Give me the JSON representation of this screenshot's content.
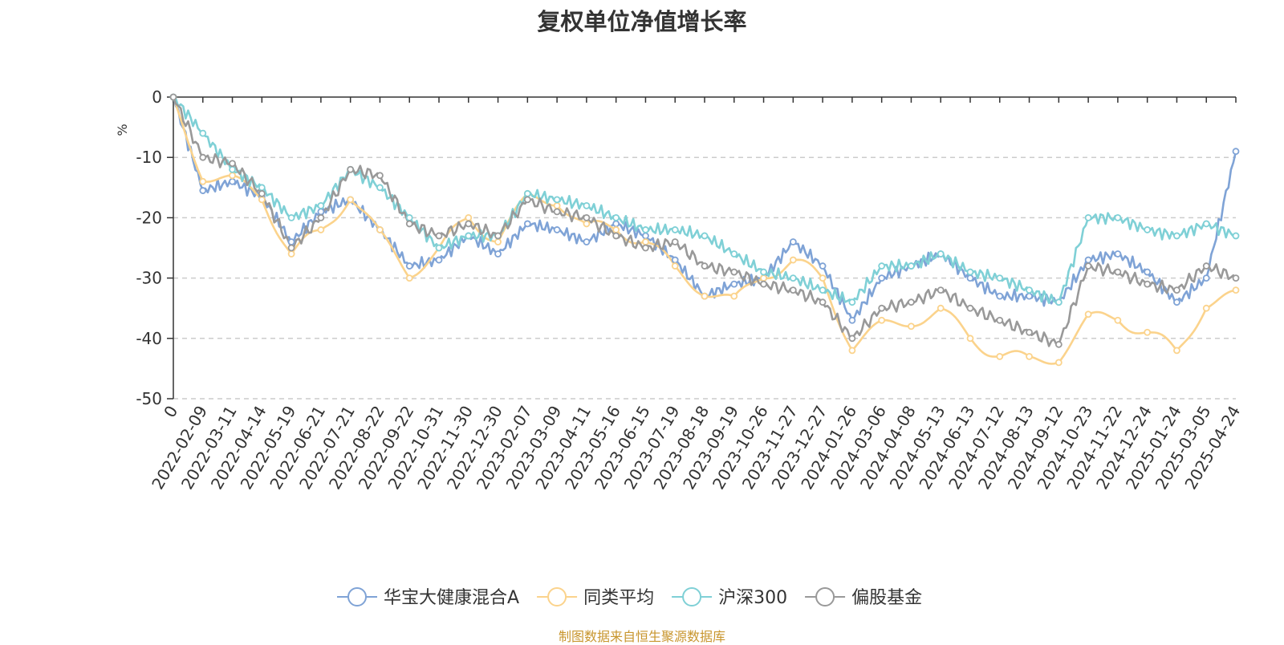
{
  "chart_data": {
    "type": "line",
    "title": "复权单位净值增长率",
    "ylabel": "%",
    "ylim": [
      -50,
      0
    ],
    "yticks": [
      0,
      -10,
      -20,
      -30,
      -40,
      -50
    ],
    "grid": "horizontal dashed",
    "legend_position": "bottom",
    "categories": [
      "0",
      "2022-02-09",
      "2022-03-11",
      "2022-04-14",
      "2022-05-19",
      "2022-06-21",
      "2022-07-21",
      "2022-08-22",
      "2022-09-22",
      "2022-10-31",
      "2022-11-30",
      "2022-12-30",
      "2023-02-07",
      "2023-03-09",
      "2023-04-11",
      "2023-05-16",
      "2023-06-15",
      "2023-07-19",
      "2023-08-18",
      "2023-09-19",
      "2023-10-26",
      "2023-11-27",
      "2023-12-27",
      "2024-01-26",
      "2024-03-06",
      "2024-04-08",
      "2024-05-13",
      "2024-06-13",
      "2024-07-12",
      "2024-08-13",
      "2024-09-12",
      "2024-10-23",
      "2024-11-22",
      "2024-12-24",
      "2025-01-24",
      "2025-03-05",
      "2025-04-24"
    ],
    "series": [
      {
        "name": "华宝大健康混合A",
        "color": "#7fa3d6",
        "values": [
          0,
          -15.5,
          -14,
          -16.5,
          -24,
          -19,
          -17,
          -22,
          -28,
          -27,
          -23,
          -26,
          -21,
          -22,
          -24,
          -21,
          -23,
          -27,
          -33,
          -31,
          -30,
          -24,
          -28,
          -37,
          -30,
          -28,
          -26,
          -30,
          -33,
          -33,
          -34,
          -27,
          -26,
          -29,
          -34,
          -30,
          -9
        ]
      },
      {
        "name": "同类平均",
        "color": "#fbd38c",
        "values": [
          0,
          -14,
          -13,
          -17,
          -26,
          -22,
          -17,
          -22,
          -30,
          -25,
          -20,
          -24,
          -16,
          -18,
          -21,
          -22,
          -24,
          -28,
          -33,
          -33,
          -30,
          -27,
          -30,
          -42,
          -37,
          -38,
          -35,
          -40,
          -43,
          -43,
          -44,
          -36,
          -37,
          -39,
          -42,
          -35,
          -32
        ]
      },
      {
        "name": "沪深300",
        "color": "#7fd0d6",
        "values": [
          0,
          -6,
          -12,
          -15,
          -20,
          -18,
          -12,
          -15,
          -20,
          -25,
          -23,
          -23,
          -16,
          -17,
          -18,
          -20,
          -22,
          -22,
          -23,
          -26,
          -29,
          -30,
          -32,
          -34,
          -28,
          -28,
          -26,
          -29,
          -30,
          -32,
          -34,
          -20,
          -20,
          -22,
          -23,
          -21,
          -23
        ]
      },
      {
        "name": "偏股基金",
        "color": "#999999",
        "values": [
          0,
          -10,
          -11,
          -16,
          -25,
          -20,
          -12,
          -13,
          -21,
          -23,
          -21,
          -23,
          -17,
          -19,
          -20,
          -23,
          -25,
          -24,
          -28,
          -29,
          -31,
          -32,
          -34,
          -40,
          -35,
          -34,
          -32,
          -35,
          -37,
          -39,
          -41,
          -28,
          -29,
          -31,
          -32,
          -28,
          -30
        ]
      }
    ]
  },
  "source_note": "制图数据来自恒生聚源数据库"
}
